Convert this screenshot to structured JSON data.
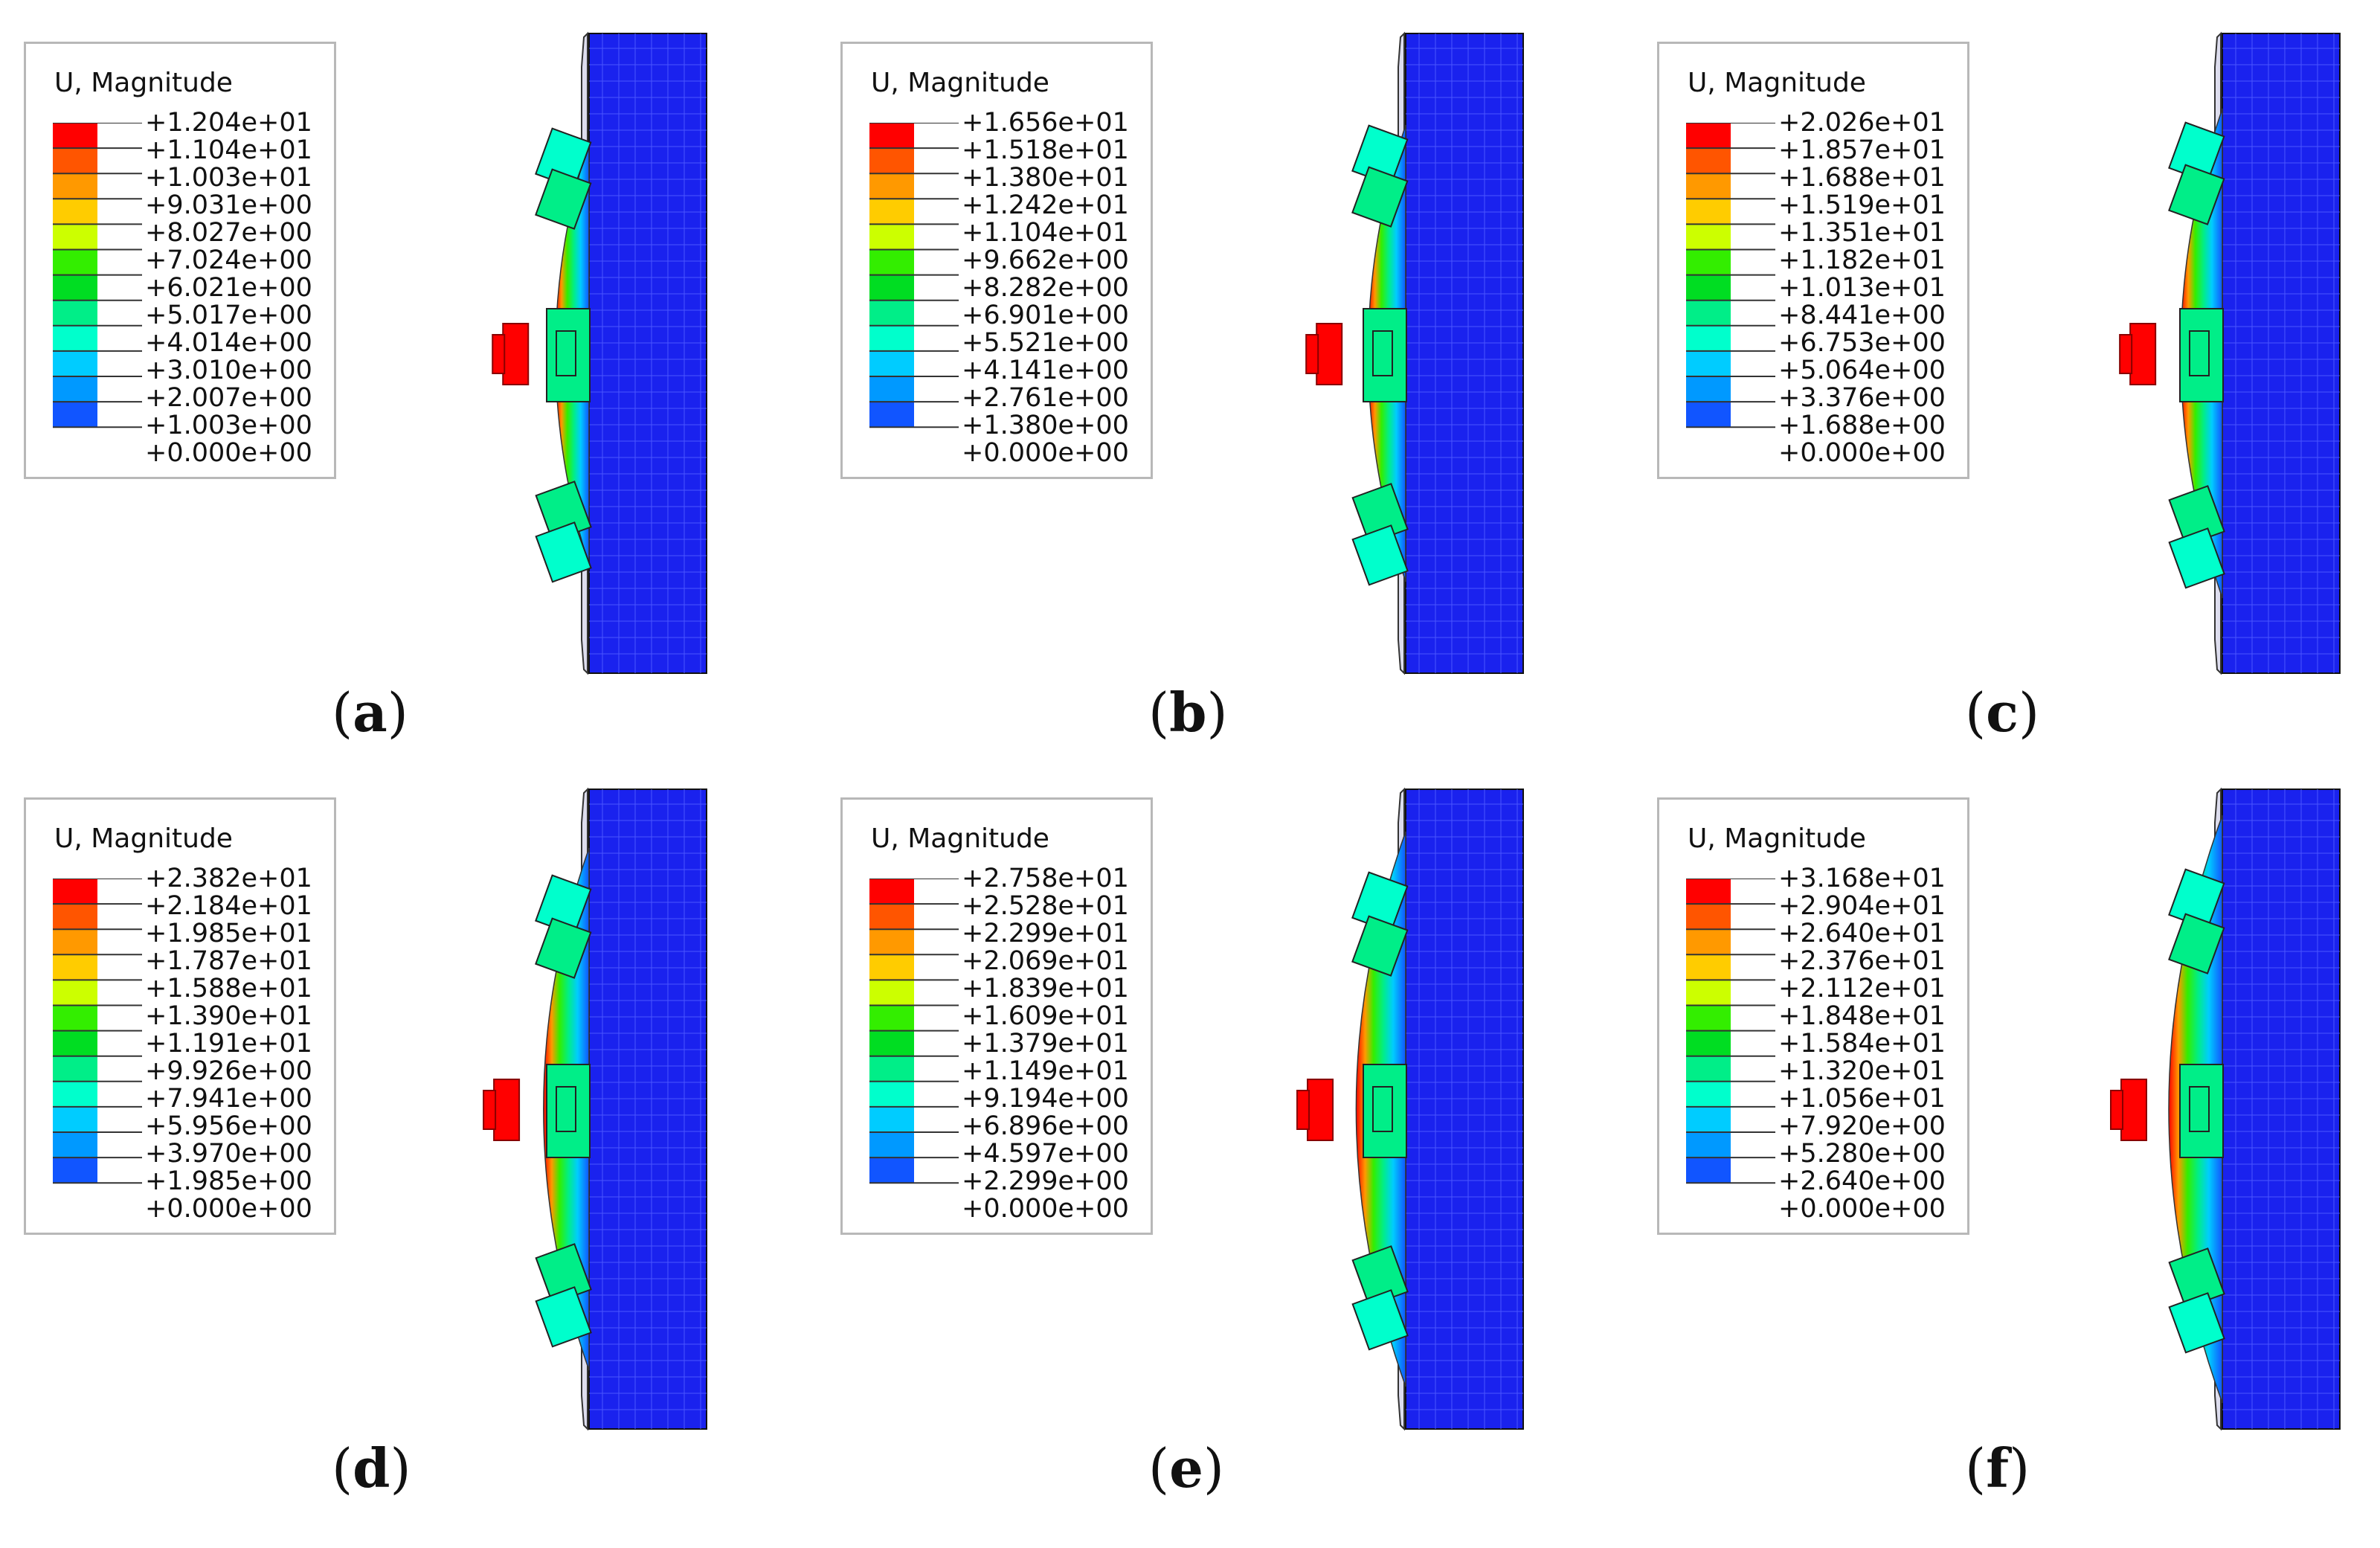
{
  "figure": {
    "panels": [
      {
        "id": "a",
        "caption_letter": "a",
        "title": "U, Magnitude",
        "max_level": 5,
        "levels": [
          "+1.204e+01",
          "+1.104e+01",
          "+1.003e+01",
          "+9.031e+00",
          "+8.027e+00",
          "+7.024e+00",
          "+6.021e+00",
          "+5.017e+00",
          "+4.014e+00",
          "+3.010e+00",
          "+2.007e+00",
          "+1.003e+00",
          "+0.000e+00"
        ]
      },
      {
        "id": "b",
        "caption_letter": "b",
        "title": "U, Magnitude",
        "max_level": 6,
        "levels": [
          "+1.656e+01",
          "+1.518e+01",
          "+1.380e+01",
          "+1.242e+01",
          "+1.104e+01",
          "+9.662e+00",
          "+8.282e+00",
          "+6.901e+00",
          "+5.521e+00",
          "+4.141e+00",
          "+2.761e+00",
          "+1.380e+00",
          "+0.000e+00"
        ]
      },
      {
        "id": "c",
        "caption_letter": "c",
        "title": "U, Magnitude",
        "max_level": 7,
        "levels": [
          "+2.026e+01",
          "+1.857e+01",
          "+1.688e+01",
          "+1.519e+01",
          "+1.351e+01",
          "+1.182e+01",
          "+1.013e+01",
          "+8.441e+00",
          "+6.753e+00",
          "+5.064e+00",
          "+3.376e+00",
          "+1.688e+00",
          "+0.000e+00"
        ]
      },
      {
        "id": "d",
        "caption_letter": "d",
        "title": "U, Magnitude",
        "max_level": 8,
        "levels": [
          "+2.382e+01",
          "+2.184e+01",
          "+1.985e+01",
          "+1.787e+01",
          "+1.588e+01",
          "+1.390e+01",
          "+1.191e+01",
          "+9.926e+00",
          "+7.941e+00",
          "+5.956e+00",
          "+3.970e+00",
          "+1.985e+00",
          "+0.000e+00"
        ]
      },
      {
        "id": "e",
        "caption_letter": "e",
        "title": "U, Magnitude",
        "max_level": 9,
        "levels": [
          "+2.758e+01",
          "+2.528e+01",
          "+2.299e+01",
          "+2.069e+01",
          "+1.839e+01",
          "+1.609e+01",
          "+1.379e+01",
          "+1.149e+01",
          "+9.194e+00",
          "+6.896e+00",
          "+4.597e+00",
          "+2.299e+00",
          "+0.000e+00"
        ]
      },
      {
        "id": "f",
        "caption_letter": "f",
        "title": "U, Magnitude",
        "max_level": 10,
        "levels": [
          "+3.168e+01",
          "+2.904e+01",
          "+2.640e+01",
          "+2.376e+01",
          "+2.112e+01",
          "+1.848e+01",
          "+1.584e+01",
          "+1.320e+01",
          "+1.056e+01",
          "+7.920e+00",
          "+5.280e+00",
          "+2.640e+00",
          "+0.000e+00"
        ]
      }
    ],
    "colormap": [
      "#ff0000",
      "#ff5500",
      "#ff9900",
      "#ffcc00",
      "#ccff00",
      "#33ee00",
      "#00dd22",
      "#00ee88",
      "#00ffcc",
      "#00ccff",
      "#0099ff",
      "#1155ff",
      "#0000ff"
    ]
  }
}
